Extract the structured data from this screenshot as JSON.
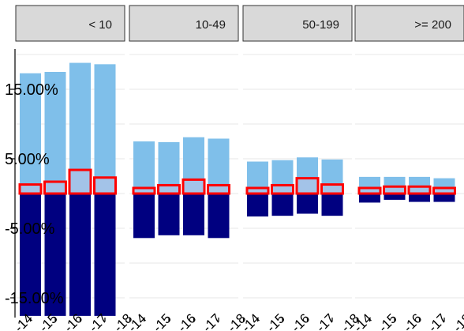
{
  "chart_data": {
    "type": "bar",
    "facets": [
      "< 10",
      "10-49",
      "50-199",
      ">= 200"
    ],
    "categories": [
      "-14",
      "-15",
      "-16",
      "-17",
      "-18"
    ],
    "tick_labels": [
      "-14",
      "-15",
      "-16",
      "-17",
      "-18"
    ],
    "y_tick_labels": [
      "15.00%",
      "5.00%",
      "-5.00%",
      "-15.00%"
    ],
    "y_ticks": [
      15,
      5,
      -5,
      -15
    ],
    "ylim": [
      -17.5,
      22.5
    ],
    "grid": true,
    "colors": {
      "positive": "#7fbfea",
      "negative": "#000080",
      "net_outline": "#ff0000",
      "net_fill": "#a3c3e8"
    },
    "series": [
      {
        "values": [
          [
            17.3,
            17.5,
            18.8,
            18.6,
            0
          ],
          [
            7.5,
            7.4,
            8.1,
            7.9,
            0
          ],
          [
            4.6,
            4.8,
            5.2,
            4.9,
            0
          ],
          [
            2.4,
            2.4,
            2.4,
            2.2,
            0
          ]
        ]
      },
      {
        "values": [
          [
            -17.6,
            -17.6,
            -17.6,
            -17.6,
            0
          ],
          [
            -6.4,
            -6.0,
            -6.0,
            -6.4,
            0
          ],
          [
            -3.3,
            -3.2,
            -2.9,
            -3.2,
            0
          ],
          [
            -1.3,
            -0.9,
            -1.2,
            -1.2,
            0
          ]
        ]
      },
      {
        "values": [
          [
            1.3,
            1.7,
            3.4,
            2.3,
            0
          ],
          [
            0.8,
            1.2,
            2.0,
            1.2,
            0
          ],
          [
            0.8,
            1.2,
            2.2,
            1.3,
            0
          ],
          [
            0.8,
            1.0,
            1.0,
            0.8,
            0
          ]
        ]
      }
    ]
  }
}
